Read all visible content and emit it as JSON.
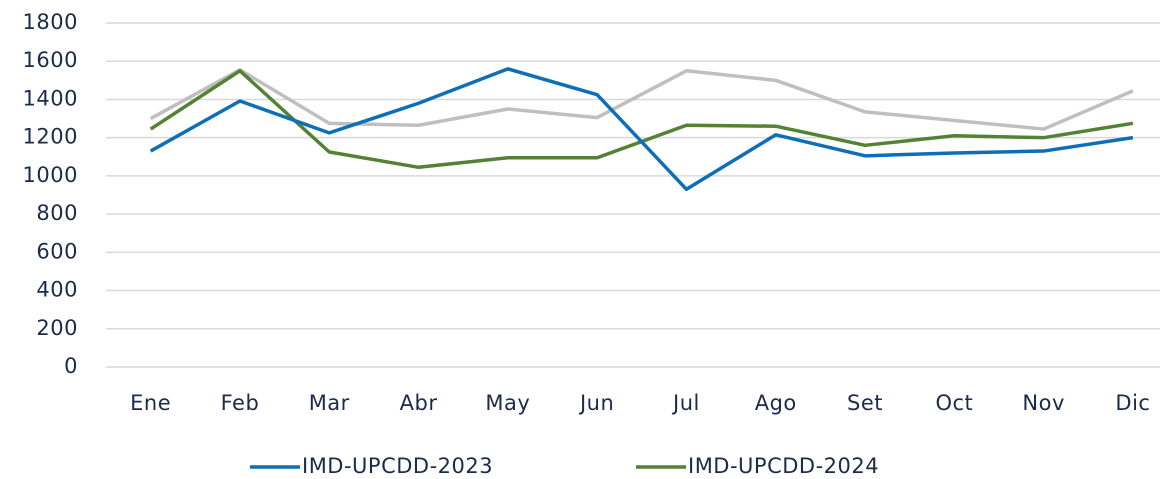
{
  "chart_data": {
    "type": "line",
    "categories": [
      "Ene",
      "Feb",
      "Mar",
      "Abr",
      "May",
      "Jun",
      "Jul",
      "Ago",
      "Set",
      "Oct",
      "Nov",
      "Dic"
    ],
    "series": [
      {
        "name": "IMD-UPCDD-2023",
        "color": "#0e6eb8",
        "values": [
          1130,
          1392,
          1225,
          1380,
          1560,
          1425,
          930,
          1215,
          1105,
          1120,
          1130,
          1200
        ]
      },
      {
        "name": "IMD-UPCDD-2024",
        "color": "#548235",
        "values": [
          1245,
          1550,
          1125,
          1045,
          1095,
          1095,
          1265,
          1260,
          1160,
          1210,
          1200,
          1275
        ]
      },
      {
        "color": "#bfbfbf",
        "values": [
          1300,
          1555,
          1275,
          1265,
          1350,
          1305,
          1550,
          1500,
          1335,
          1290,
          1245,
          1445
        ]
      }
    ],
    "ylim": [
      0,
      1800
    ],
    "yticks": [
      0,
      200,
      400,
      600,
      800,
      1000,
      1200,
      1400,
      1600,
      1800
    ],
    "grid": true,
    "legend": "bottom"
  }
}
